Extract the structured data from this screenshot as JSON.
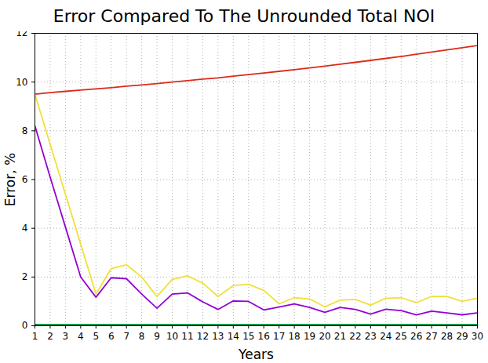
{
  "chart_data": {
    "type": "line",
    "title": "Error Compared To The Unrounded Total NOI",
    "x_label": "Years",
    "y_label": "Error, %",
    "x": [
      1,
      2,
      3,
      4,
      5,
      6,
      7,
      8,
      9,
      10,
      11,
      12,
      13,
      14,
      15,
      16,
      17,
      18,
      19,
      20,
      21,
      22,
      23,
      24,
      25,
      26,
      27,
      28,
      29,
      30
    ],
    "series": [
      {
        "color": "#dd2a1b",
        "values": [
          9.5,
          9.57,
          9.62,
          9.67,
          9.72,
          9.77,
          9.83,
          9.88,
          9.94,
          10.0,
          10.06,
          10.12,
          10.17,
          10.24,
          10.31,
          10.37,
          10.44,
          10.51,
          10.58,
          10.65,
          10.73,
          10.81,
          10.89,
          10.97,
          11.05,
          11.14,
          11.23,
          11.32,
          11.41,
          11.5
        ]
      },
      {
        "color": "#f0e03a",
        "values": [
          9.5,
          7.45,
          5.4,
          3.35,
          1.3,
          2.35,
          2.5,
          2.0,
          1.2,
          1.9,
          2.05,
          1.75,
          1.2,
          1.65,
          1.7,
          1.45,
          0.9,
          1.15,
          1.1,
          0.78,
          1.05,
          1.08,
          0.85,
          1.13,
          1.15,
          0.95,
          1.2,
          1.2,
          1.0,
          1.13
        ]
      },
      {
        "color": "#9400d3",
        "values": [
          8.2,
          6.1,
          4.05,
          2.0,
          1.17,
          1.97,
          1.93,
          1.3,
          0.72,
          1.3,
          1.35,
          0.98,
          0.67,
          1.02,
          1.0,
          0.65,
          0.77,
          0.9,
          0.75,
          0.55,
          0.75,
          0.67,
          0.48,
          0.68,
          0.62,
          0.45,
          0.6,
          0.53,
          0.45,
          0.53
        ]
      },
      {
        "color": "#0a9a50",
        "values": [
          0.02,
          0.02,
          0.02,
          0.02,
          0.02,
          0.02,
          0.02,
          0.02,
          0.02,
          0.02,
          0.02,
          0.02,
          0.02,
          0.02,
          0.02,
          0.02,
          0.02,
          0.02,
          0.02,
          0.02,
          0.02,
          0.02,
          0.02,
          0.02,
          0.02,
          0.02,
          0.02,
          0.02,
          0.02,
          0.02
        ]
      }
    ],
    "xlim": [
      1,
      30
    ],
    "xticks": [
      1,
      2,
      3,
      4,
      5,
      6,
      7,
      8,
      9,
      10,
      11,
      12,
      13,
      14,
      15,
      16,
      17,
      18,
      19,
      20,
      21,
      22,
      23,
      24,
      25,
      26,
      27,
      28,
      29,
      30
    ],
    "ylim": [
      0,
      12
    ],
    "yticks": [
      0,
      2,
      4,
      6,
      8,
      10,
      12
    ],
    "grid": true
  }
}
